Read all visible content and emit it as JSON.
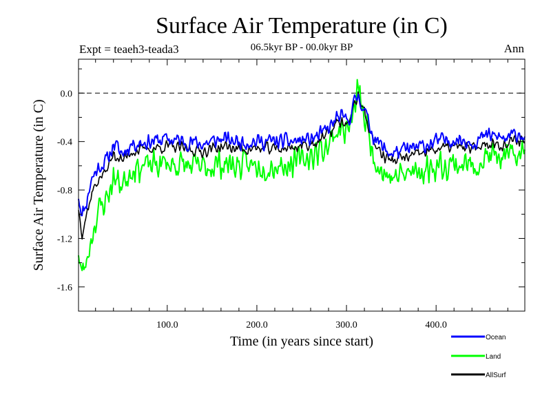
{
  "chart_data": {
    "type": "line",
    "title": "Surface Air Temperature (in C)",
    "subtitle": "06.5kyr BP - 00.0kyr BP",
    "left_label": "Expt = teaeh3-teada3",
    "right_label": "Ann",
    "xlabel": "Time (in years since start)",
    "ylabel": "Surface Air Temperature (in C)",
    "xlim": [
      1,
      499
    ],
    "ylim": [
      -1.8,
      0.28
    ],
    "x_ticks": [
      100,
      200,
      300,
      400
    ],
    "x_tick_labels": [
      "100.0",
      "200.0",
      "300.0",
      "400.0"
    ],
    "y_ticks": [
      0.0,
      -0.4,
      -0.8,
      -1.2,
      -1.6
    ],
    "y_tick_labels": [
      "0.0",
      "-0.4",
      "-0.8",
      "-1.2",
      "-1.6"
    ],
    "zero_line": {
      "value": 0.0,
      "style": "dashed"
    },
    "legend_position": "bottom-right",
    "series": [
      {
        "name": "Ocean",
        "color": "#0000ff",
        "anchors_x": [
          1,
          5,
          10,
          15,
          20,
          25,
          30,
          35,
          40,
          50,
          60,
          80,
          100,
          120,
          140,
          160,
          180,
          200,
          220,
          240,
          260,
          270,
          280,
          290,
          300,
          305,
          310,
          313,
          318,
          325,
          330,
          340,
          350,
          360,
          380,
          400,
          420,
          440,
          460,
          480,
          490,
          499
        ],
        "anchors_y": [
          -0.85,
          -1.0,
          -0.9,
          -0.72,
          -0.65,
          -0.6,
          -0.58,
          -0.52,
          -0.42,
          -0.5,
          -0.42,
          -0.4,
          -0.38,
          -0.4,
          -0.42,
          -0.38,
          -0.4,
          -0.4,
          -0.4,
          -0.4,
          -0.38,
          -0.35,
          -0.3,
          -0.2,
          -0.22,
          -0.18,
          -0.05,
          -0.02,
          -0.1,
          -0.25,
          -0.35,
          -0.45,
          -0.5,
          -0.48,
          -0.45,
          -0.4,
          -0.38,
          -0.4,
          -0.35,
          -0.38,
          -0.33,
          -0.35
        ],
        "noise": 0.08,
        "seed": 11
      },
      {
        "name": "Land",
        "color": "#00ff00",
        "anchors_x": [
          1,
          5,
          10,
          15,
          20,
          25,
          30,
          35,
          40,
          50,
          60,
          80,
          100,
          120,
          140,
          160,
          180,
          200,
          220,
          240,
          260,
          270,
          280,
          290,
          300,
          305,
          310,
          313,
          318,
          325,
          330,
          340,
          350,
          360,
          380,
          400,
          420,
          440,
          460,
          480,
          490,
          499
        ],
        "anchors_y": [
          -1.3,
          -1.5,
          -1.4,
          -1.2,
          -1.05,
          -0.95,
          -0.9,
          -0.82,
          -0.7,
          -0.75,
          -0.62,
          -0.6,
          -0.58,
          -0.6,
          -0.62,
          -0.58,
          -0.6,
          -0.6,
          -0.6,
          -0.58,
          -0.52,
          -0.48,
          -0.42,
          -0.3,
          -0.3,
          -0.25,
          -0.1,
          0.05,
          -0.15,
          -0.35,
          -0.5,
          -0.65,
          -0.7,
          -0.68,
          -0.65,
          -0.6,
          -0.58,
          -0.6,
          -0.52,
          -0.55,
          -0.5,
          -0.5
        ],
        "noise": 0.14,
        "seed": 23
      },
      {
        "name": "AllSurf",
        "color": "#000000",
        "anchors_x": [
          1,
          5,
          10,
          15,
          20,
          25,
          30,
          35,
          40,
          50,
          60,
          80,
          100,
          120,
          140,
          160,
          180,
          200,
          220,
          240,
          260,
          270,
          280,
          290,
          300,
          305,
          310,
          313,
          318,
          325,
          330,
          340,
          350,
          360,
          380,
          400,
          420,
          440,
          460,
          480,
          490,
          499
        ],
        "anchors_y": [
          -0.95,
          -1.15,
          -1.0,
          -0.85,
          -0.75,
          -0.7,
          -0.66,
          -0.6,
          -0.5,
          -0.56,
          -0.48,
          -0.46,
          -0.44,
          -0.46,
          -0.48,
          -0.44,
          -0.46,
          -0.46,
          -0.46,
          -0.45,
          -0.42,
          -0.39,
          -0.34,
          -0.24,
          -0.25,
          -0.21,
          -0.07,
          -0.01,
          -0.12,
          -0.28,
          -0.4,
          -0.51,
          -0.56,
          -0.54,
          -0.51,
          -0.46,
          -0.44,
          -0.46,
          -0.41,
          -0.43,
          -0.38,
          -0.4
        ],
        "noise": 0.06,
        "seed": 37
      }
    ]
  }
}
